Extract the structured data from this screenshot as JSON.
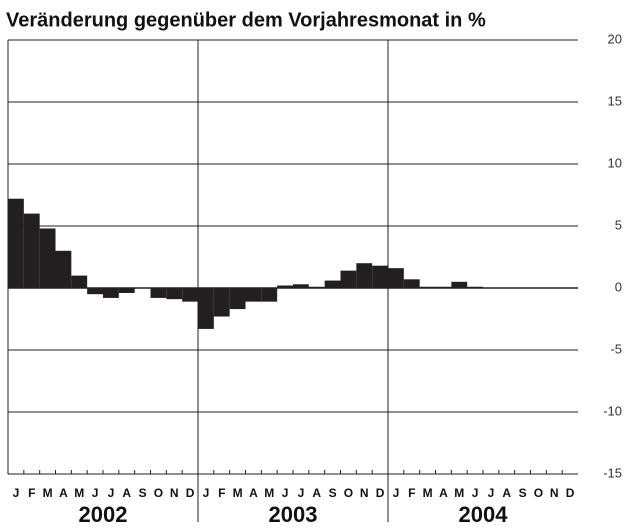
{
  "chart_data": {
    "type": "bar",
    "title": "Veränderung gegenüber dem Vorjahresmonat in %",
    "categories": [
      "J",
      "F",
      "M",
      "A",
      "M",
      "J",
      "J",
      "A",
      "S",
      "O",
      "N",
      "D",
      "J",
      "F",
      "M",
      "A",
      "M",
      "J",
      "J",
      "A",
      "S",
      "O",
      "N",
      "D",
      "J",
      "F",
      "M",
      "A",
      "M",
      "J",
      "J",
      "A",
      "S",
      "O",
      "N",
      "D"
    ],
    "years": [
      "2002",
      "2003",
      "2004"
    ],
    "values": [
      7.2,
      6.0,
      4.8,
      3.0,
      1.0,
      -0.5,
      -0.8,
      -0.4,
      0,
      -0.8,
      -0.9,
      -1.1,
      -3.3,
      -2.3,
      -1.7,
      -1.1,
      -1.1,
      0.2,
      0.3,
      0.1,
      0.6,
      1.4,
      2.0,
      1.8,
      1.6,
      0.7,
      0.1,
      0.1,
      0.5,
      0.1,
      0,
      0,
      0,
      0,
      0,
      0
    ],
    "color": "#231f20",
    "ylim": [
      -15,
      20
    ],
    "yticks": [
      -15,
      -10,
      -5,
      0,
      5,
      10,
      15,
      20
    ],
    "grid": true
  }
}
